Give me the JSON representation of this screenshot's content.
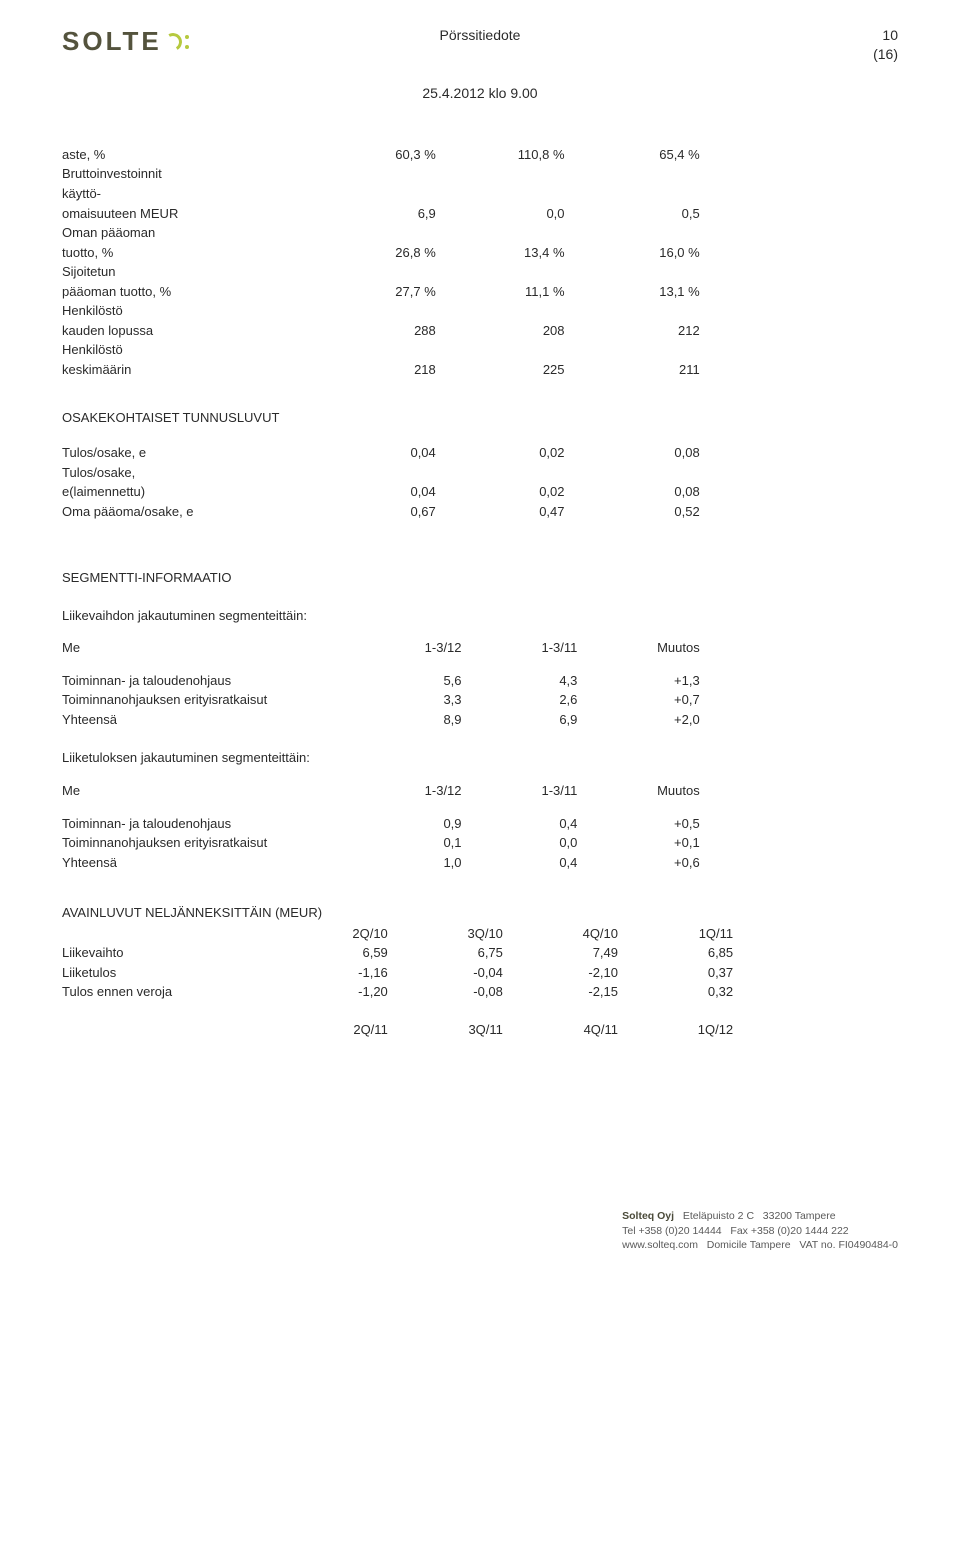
{
  "header": {
    "logo_text": "SOLTE",
    "title": "Pörssitiedote",
    "page_num": "10",
    "page_total": "(16)",
    "datetime": "25.4.2012 klo 9.00"
  },
  "ratios": {
    "rows": [
      {
        "label": "aste, %",
        "c1": "60,3 %",
        "c2": "110,8 %",
        "c3": "65,4 %"
      },
      {
        "label": "Bruttoinvestoinnit"
      },
      {
        "label": "käyttö-"
      },
      {
        "label": "omaisuuteen MEUR",
        "c1": "6,9",
        "c2": "0,0",
        "c3": "0,5"
      },
      {
        "label": "Oman pääoman"
      },
      {
        "label": "tuotto, %",
        "c1": "26,8 %",
        "c2": "13,4 %",
        "c3": "16,0 %"
      },
      {
        "label": "Sijoitetun"
      },
      {
        "label": "pääoman tuotto, %",
        "c1": "27,7 %",
        "c2": "11,1 %",
        "c3": "13,1 %"
      },
      {
        "label": "Henkilöstö"
      },
      {
        "label": "kauden lopussa",
        "c1": "288",
        "c2": "208",
        "c3": "212"
      },
      {
        "label": "Henkilöstö"
      },
      {
        "label": "keskimäärin",
        "c1": "218",
        "c2": "225",
        "c3": "211"
      }
    ]
  },
  "per_share": {
    "title": "OSAKEKOHTAISET TUNNUSLUVUT",
    "rows": [
      {
        "label": "Tulos/osake, e",
        "c1": "0,04",
        "c2": "0,02",
        "c3": "0,08"
      },
      {
        "label": "Tulos/osake,"
      },
      {
        "label": "e(laimennettu)",
        "c1": "0,04",
        "c2": "0,02",
        "c3": "0,08"
      },
      {
        "label": "Oma pääoma/osake, e",
        "c1": "0,67",
        "c2": "0,47",
        "c3": "0,52"
      }
    ]
  },
  "segment": {
    "title": "SEGMENTTI-INFORMAATIO",
    "revenue_title": "Liikevaihdon jakautuminen segmenteittäin:",
    "header": {
      "label": "Me",
      "c1": "1-3/12",
      "c2": "1-3/11",
      "c3": "Muutos"
    },
    "revenue_rows": [
      {
        "label": "Toiminnan- ja taloudenohjaus",
        "c1": "5,6",
        "c2": "4,3",
        "c3": "+1,3"
      },
      {
        "label": "Toiminnanohjauksen erityisratkaisut",
        "c1": "3,3",
        "c2": "2,6",
        "c3": "+0,7"
      },
      {
        "label": "Yhteensä",
        "c1": "8,9",
        "c2": "6,9",
        "c3": "+2,0"
      }
    ],
    "profit_title": "Liiketuloksen jakautuminen segmenteittäin:",
    "profit_rows": [
      {
        "label": "Toiminnan- ja taloudenohjaus",
        "c1": "0,9",
        "c2": "0,4",
        "c3": "+0,5"
      },
      {
        "label": "Toiminnanohjauksen erityisratkaisut",
        "c1": "0,1",
        "c2": "0,0",
        "c3": "+0,1"
      },
      {
        "label": "Yhteensä",
        "c1": "1,0",
        "c2": "0,4",
        "c3": "+0,6"
      }
    ]
  },
  "quarterly": {
    "title": "AVAINLUVUT NELJÄNNEKSITTÄIN (MEUR)",
    "header1": {
      "c1": "2Q/10",
      "c2": "3Q/10",
      "c3": "4Q/10",
      "c4": "1Q/11"
    },
    "rows": [
      {
        "label": "Liikevaihto",
        "c1": "6,59",
        "c2": "6,75",
        "c3": "7,49",
        "c4": "6,85"
      },
      {
        "label": "Liiketulos",
        "c1": "-1,16",
        "c2": "-0,04",
        "c3": "-2,10",
        "c4": "0,37"
      },
      {
        "label": "Tulos ennen veroja",
        "c1": "-1,20",
        "c2": "-0,08",
        "c3": "-2,15",
        "c4": "0,32"
      }
    ],
    "header2": {
      "c1": "2Q/11",
      "c2": "3Q/11",
      "c3": "4Q/11",
      "c4": "1Q/12"
    }
  },
  "footer": {
    "company": "Solteq Oyj",
    "addr1": "Eteläpuisto 2 C",
    "addr2": "33200 Tampere",
    "tel": "Tel +358 (0)20 14444",
    "fax": "Fax +358 (0)20 1444 222",
    "web": "www.solteq.com",
    "domicile": "Domicile Tampere",
    "vat": "VAT no. FI0490484-0"
  }
}
